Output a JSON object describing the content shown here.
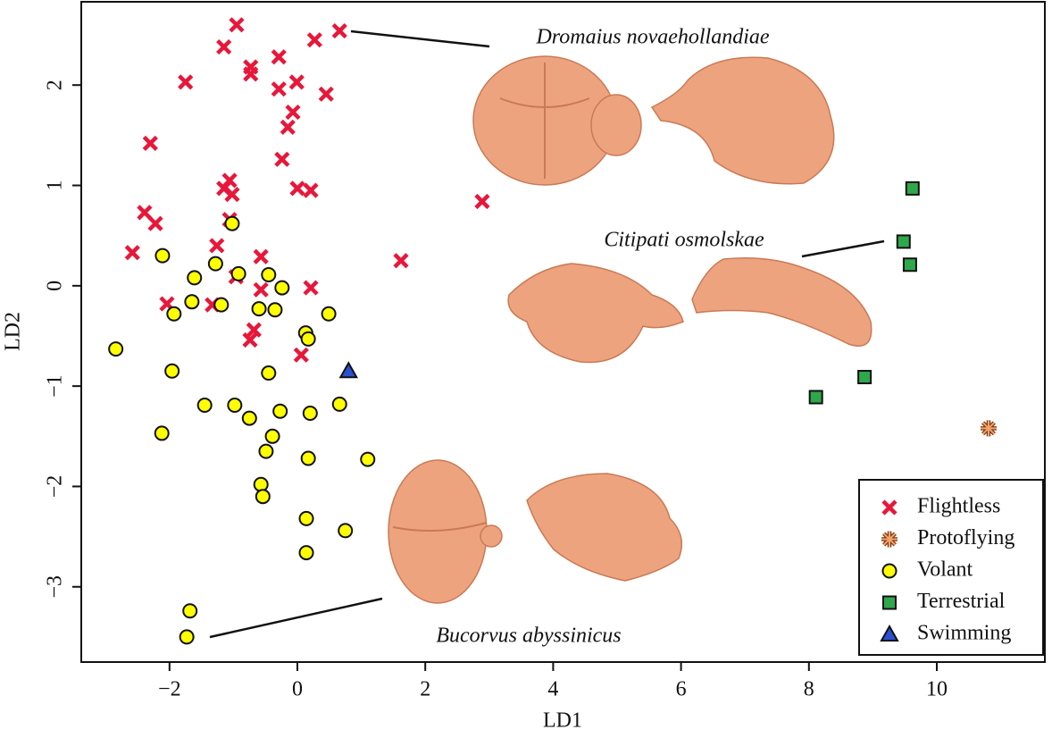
{
  "chart_data": {
    "type": "scatter",
    "x_label": "LD1",
    "y_label": "LD2",
    "xlim": [
      -3.38,
      11.69
    ],
    "ylim": [
      -3.75,
      2.83
    ],
    "xticks": [
      {
        "value": -2,
        "label": "−2"
      },
      0,
      2,
      4,
      6,
      8,
      10
    ],
    "yticks": [
      {
        "value": -3,
        "label": "−3"
      },
      {
        "value": -2,
        "label": "−2"
      },
      {
        "value": -1,
        "label": "−1"
      },
      0,
      1,
      2
    ],
    "annotations": [
      "Dromaius novaehollandiae",
      "Citipati osmolskae",
      "Bucorvus abyssinicus"
    ],
    "series": [
      {
        "name": "Flightless",
        "color": "#e8173a",
        "marker": "x",
        "x": [
          -0.95,
          -1.15,
          0.66,
          0.27,
          -0.29,
          -0.73,
          -0.73,
          -1.75,
          -0.01,
          -0.29,
          0.45,
          -0.07,
          -0.15,
          -2.3,
          -0.24,
          -1.06,
          -1.15,
          -1.02,
          0,
          0.21,
          2.89,
          -2.39,
          -2.22,
          -1.06,
          -1.26,
          -2.58,
          -0.57,
          1.62,
          -0.96,
          -0.57,
          0.21,
          -2.04,
          -1.33,
          -0.68,
          -0.74,
          0.06
        ],
        "values": [
          2.6,
          2.38,
          2.54,
          2.45,
          2.28,
          2.18,
          2.11,
          2.03,
          2.03,
          1.96,
          1.91,
          1.73,
          1.58,
          1.42,
          1.26,
          1.05,
          0.97,
          0.91,
          0.97,
          0.95,
          0.84,
          0.73,
          0.62,
          0.66,
          0.4,
          0.33,
          0.29,
          0.25,
          0.09,
          -0.04,
          -0.02,
          -0.18,
          -0.19,
          -0.44,
          -0.54,
          -0.69
        ]
      },
      {
        "name": "Protoflying",
        "color": "#f4a26a",
        "marker": "asterisk",
        "x": [
          10.81
        ],
        "values": [
          -1.42
        ]
      },
      {
        "name": "Volant",
        "color": "#ffff00",
        "marker": "circle",
        "x": [
          -1.02,
          -2.11,
          -1.28,
          -1.61,
          -0.92,
          -0.45,
          -0.24,
          -1.65,
          -1.19,
          -1.93,
          -0.6,
          -0.35,
          0.49,
          0.13,
          0.17,
          -2.84,
          -1.96,
          -0.45,
          -1.45,
          -0.98,
          -0.75,
          -0.27,
          0.2,
          0.66,
          -2.12,
          -0.39,
          -0.49,
          0.17,
          1.1,
          -0.57,
          -0.54,
          0.14,
          0.75,
          0.14,
          -1.68,
          -1.73
        ],
        "values": [
          0.62,
          0.3,
          0.22,
          0.08,
          0.12,
          0.11,
          -0.02,
          -0.16,
          -0.19,
          -0.28,
          -0.23,
          -0.24,
          -0.28,
          -0.47,
          -0.53,
          -0.63,
          -0.85,
          -0.87,
          -1.19,
          -1.19,
          -1.32,
          -1.25,
          -1.27,
          -1.18,
          -1.47,
          -1.5,
          -1.65,
          -1.72,
          -1.73,
          -1.98,
          -2.1,
          -2.32,
          -2.44,
          -2.66,
          -3.24,
          -3.5
        ]
      },
      {
        "name": "Terrestrial",
        "color": "#2ea84b",
        "marker": "square",
        "x": [
          9.62,
          9.48,
          9.58,
          8.87,
          8.11
        ],
        "values": [
          0.97,
          0.44,
          0.21,
          -0.91,
          -1.11
        ]
      },
      {
        "name": "Swimming",
        "color": "#2a4fd0",
        "marker": "triangle",
        "x": [
          0.8
        ],
        "values": [
          -0.85
        ]
      }
    ]
  }
}
